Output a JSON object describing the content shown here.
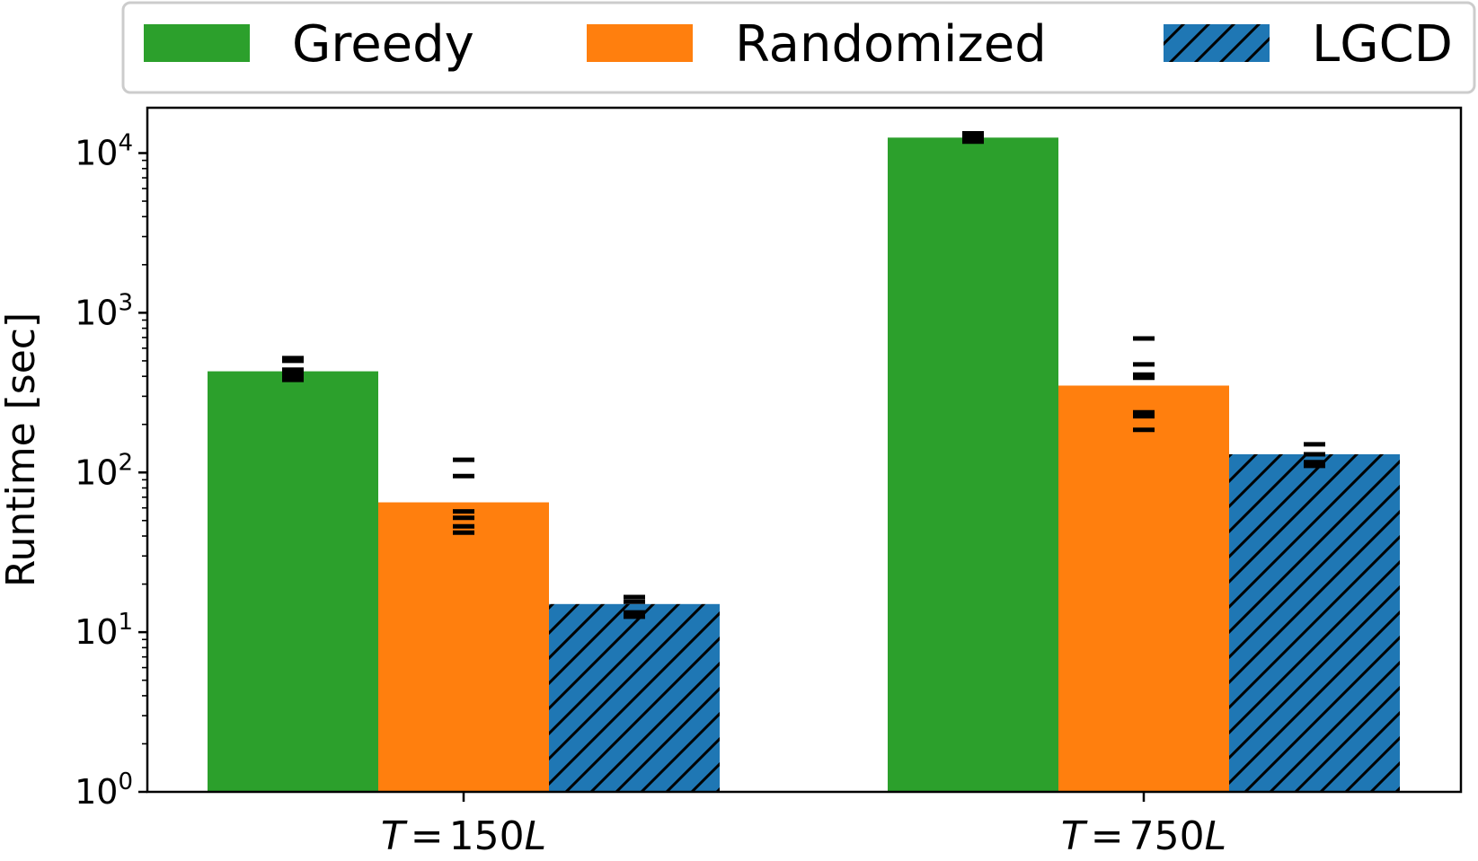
{
  "chart_data": {
    "type": "bar",
    "scale": "log",
    "categories": [
      {
        "var": "T",
        "op": "=",
        "num": "150",
        "unit": "L"
      },
      {
        "var": "T",
        "op": "=",
        "num": "750",
        "unit": "L"
      }
    ],
    "series": [
      {
        "name": "Greedy",
        "color": "#2ca02c",
        "hatch": false,
        "values": [
          430,
          12500
        ],
        "runs": [
          [
            380,
            400,
            420,
            440,
            500,
            520
          ],
          [
            11800,
            12200,
            12600,
            13000,
            13300
          ]
        ]
      },
      {
        "name": "Randomized",
        "color": "#ff7f0e",
        "hatch": false,
        "values": [
          65,
          350
        ],
        "runs": [
          [
            42,
            46,
            52,
            57,
            95,
            120
          ],
          [
            185,
            225,
            238,
            392,
            410,
            475,
            690
          ]
        ]
      },
      {
        "name": "LGCD",
        "color": "#1f77b4",
        "hatch": true,
        "values": [
          15,
          130
        ],
        "runs": [
          [
            12.5,
            13.3,
            15.5,
            16.6
          ],
          [
            110,
            116,
            130,
            150
          ]
        ]
      }
    ],
    "ylabel": "Runtime [sec]",
    "xlabel": "",
    "ylim": [
      1,
      20000
    ],
    "yticks": [
      {
        "value": 1,
        "base": "10",
        "exp": "0"
      },
      {
        "value": 10,
        "base": "10",
        "exp": "1"
      },
      {
        "value": 100,
        "base": "10",
        "exp": "2"
      },
      {
        "value": 1000,
        "base": "10",
        "exp": "3"
      },
      {
        "value": 10000,
        "base": "10",
        "exp": "4"
      }
    ],
    "legend": {
      "placement": "top",
      "columns": 3
    }
  }
}
